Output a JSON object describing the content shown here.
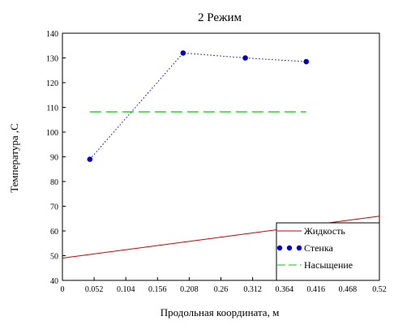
{
  "chart_data": {
    "type": "line",
    "title": "2 Режим",
    "xlabel": "Продольная координата, м",
    "ylabel": "Температура ,С",
    "xlim": [
      0,
      0.52
    ],
    "ylim": [
      40,
      140
    ],
    "xticks": [
      0,
      0.052,
      0.104,
      0.156,
      0.208,
      0.26,
      0.312,
      0.364,
      0.416,
      0.468,
      0.52
    ],
    "xtick_labels": [
      "0",
      "0.052",
      "0.104",
      "0.156",
      "0.208",
      "0.26",
      "0.312",
      "0.364",
      "0.416",
      "0.468",
      "0.52"
    ],
    "yticks": [
      40,
      50,
      60,
      70,
      80,
      90,
      100,
      110,
      120,
      130,
      140
    ],
    "ytick_labels": [
      "40",
      "50",
      "60",
      "70",
      "80",
      "90",
      "100",
      "110",
      "120",
      "130",
      "140"
    ],
    "grid": false,
    "legend_position": "bottom-right",
    "series": [
      {
        "name": "Жидкость",
        "style": "solid",
        "marker": "none",
        "color": "#cc0000",
        "x": [
          0,
          0.52
        ],
        "y": [
          49,
          66
        ]
      },
      {
        "name": "Стенка",
        "style": "dotted",
        "marker": "circle",
        "color": "#0000cc",
        "x": [
          0.045,
          0.198,
          0.3,
          0.4
        ],
        "y": [
          89,
          132,
          130,
          128.5
        ]
      },
      {
        "name": "Насыщение",
        "style": "dashed",
        "marker": "none",
        "color": "#00cc00",
        "x": [
          0.045,
          0.4
        ],
        "y": [
          108.2,
          108.2
        ]
      }
    ]
  }
}
